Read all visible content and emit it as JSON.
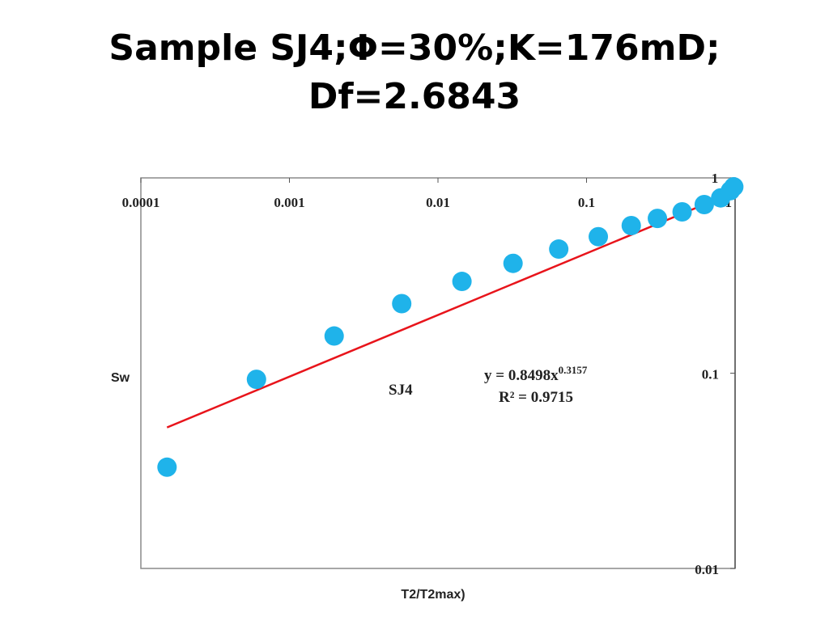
{
  "slide": {
    "title_line1": "Sample SJ4;Φ=30%;K=176mD;",
    "title_line2": "Df=2.6843"
  },
  "chart_data": {
    "type": "scatter",
    "x_scale": "log",
    "y_scale": "log",
    "xlim": [
      0.0001,
      1
    ],
    "ylim": [
      0.01,
      1
    ],
    "x_ticks": [
      {
        "value": 0.0001,
        "label": "0.0001"
      },
      {
        "value": 0.001,
        "label": "0.001"
      },
      {
        "value": 0.01,
        "label": "0.01"
      },
      {
        "value": 0.1,
        "label": "0.1"
      },
      {
        "value": 1,
        "label": "1"
      }
    ],
    "y_ticks": [
      {
        "value": 1,
        "label": "1"
      },
      {
        "value": 0.1,
        "label": "0.1"
      },
      {
        "value": 0.01,
        "label": "0.01"
      }
    ],
    "xlabel": "T2/T2max)",
    "ylabel": "Sw",
    "grid": false,
    "series": [
      {
        "name": "SJ4",
        "color": "#1FB3EA",
        "points": [
          {
            "x": 0.00015,
            "y": 0.033
          },
          {
            "x": 0.0006,
            "y": 0.093
          },
          {
            "x": 0.002,
            "y": 0.155
          },
          {
            "x": 0.0057,
            "y": 0.227
          },
          {
            "x": 0.0145,
            "y": 0.295
          },
          {
            "x": 0.032,
            "y": 0.365
          },
          {
            "x": 0.065,
            "y": 0.432
          },
          {
            "x": 0.12,
            "y": 0.5
          },
          {
            "x": 0.2,
            "y": 0.57
          },
          {
            "x": 0.3,
            "y": 0.62
          },
          {
            "x": 0.44,
            "y": 0.67
          },
          {
            "x": 0.62,
            "y": 0.73
          },
          {
            "x": 0.8,
            "y": 0.79
          },
          {
            "x": 0.93,
            "y": 0.86
          },
          {
            "x": 0.98,
            "y": 0.9
          }
        ]
      }
    ],
    "trendline": {
      "type": "power",
      "coefficient": 0.8498,
      "exponent": 0.3157,
      "x_range": [
        0.00015,
        1
      ],
      "color": "#E8141B"
    },
    "annotations": {
      "series_label": "SJ4",
      "equation_prefix": "y = 0.8498x",
      "equation_exponent": "0.3157",
      "r_squared": "R² = 0.9715"
    }
  }
}
